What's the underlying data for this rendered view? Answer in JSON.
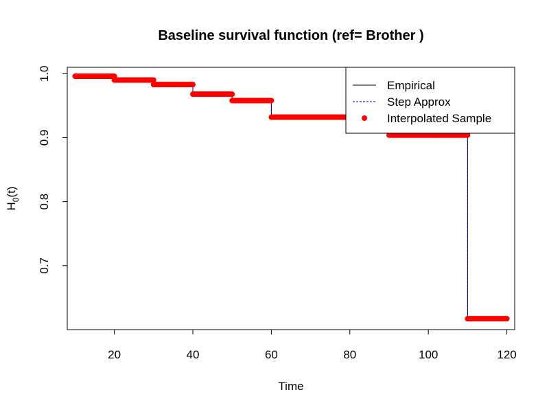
{
  "chart_data": {
    "type": "line",
    "title": "Baseline survival function (ref= Brother )",
    "xlabel": "Time",
    "ylabel_main": "H",
    "ylabel_sub": "0",
    "ylabel_tail": "(t)",
    "xlim": [
      8,
      122
    ],
    "ylim": [
      0.6,
      1.01
    ],
    "x_ticks": [
      20,
      40,
      60,
      80,
      100,
      120
    ],
    "y_ticks": [
      0.7,
      0.8,
      0.9,
      1.0
    ],
    "x_tick_labels": [
      "20",
      "40",
      "60",
      "80",
      "100",
      "120"
    ],
    "y_tick_labels": [
      "0.7",
      "0.8",
      "0.9",
      "1.0"
    ],
    "grid": false,
    "legend_position": "top-right",
    "legend": [
      {
        "label": "Empirical",
        "kind": "solid-line",
        "color": "#000000"
      },
      {
        "label": "Step Approx",
        "kind": "dashed-line",
        "color": "#0000cd"
      },
      {
        "label": "Interpolated Sample",
        "kind": "dot",
        "color": "#ff0000"
      }
    ],
    "steps": [
      {
        "x0": 10,
        "x1": 20,
        "y": 0.996
      },
      {
        "x0": 20,
        "x1": 30,
        "y": 0.99
      },
      {
        "x0": 30,
        "x1": 40,
        "y": 0.983
      },
      {
        "x0": 40,
        "x1": 50,
        "y": 0.968
      },
      {
        "x0": 50,
        "x1": 60,
        "y": 0.958
      },
      {
        "x0": 60,
        "x1": 90,
        "y": 0.932
      },
      {
        "x0": 90,
        "x1": 110,
        "y": 0.904
      },
      {
        "x0": 110,
        "x1": 120,
        "y": 0.617
      }
    ],
    "colors": {
      "empirical": "#000000",
      "step_approx": "#0000cd",
      "sample": "#ff0000"
    }
  }
}
